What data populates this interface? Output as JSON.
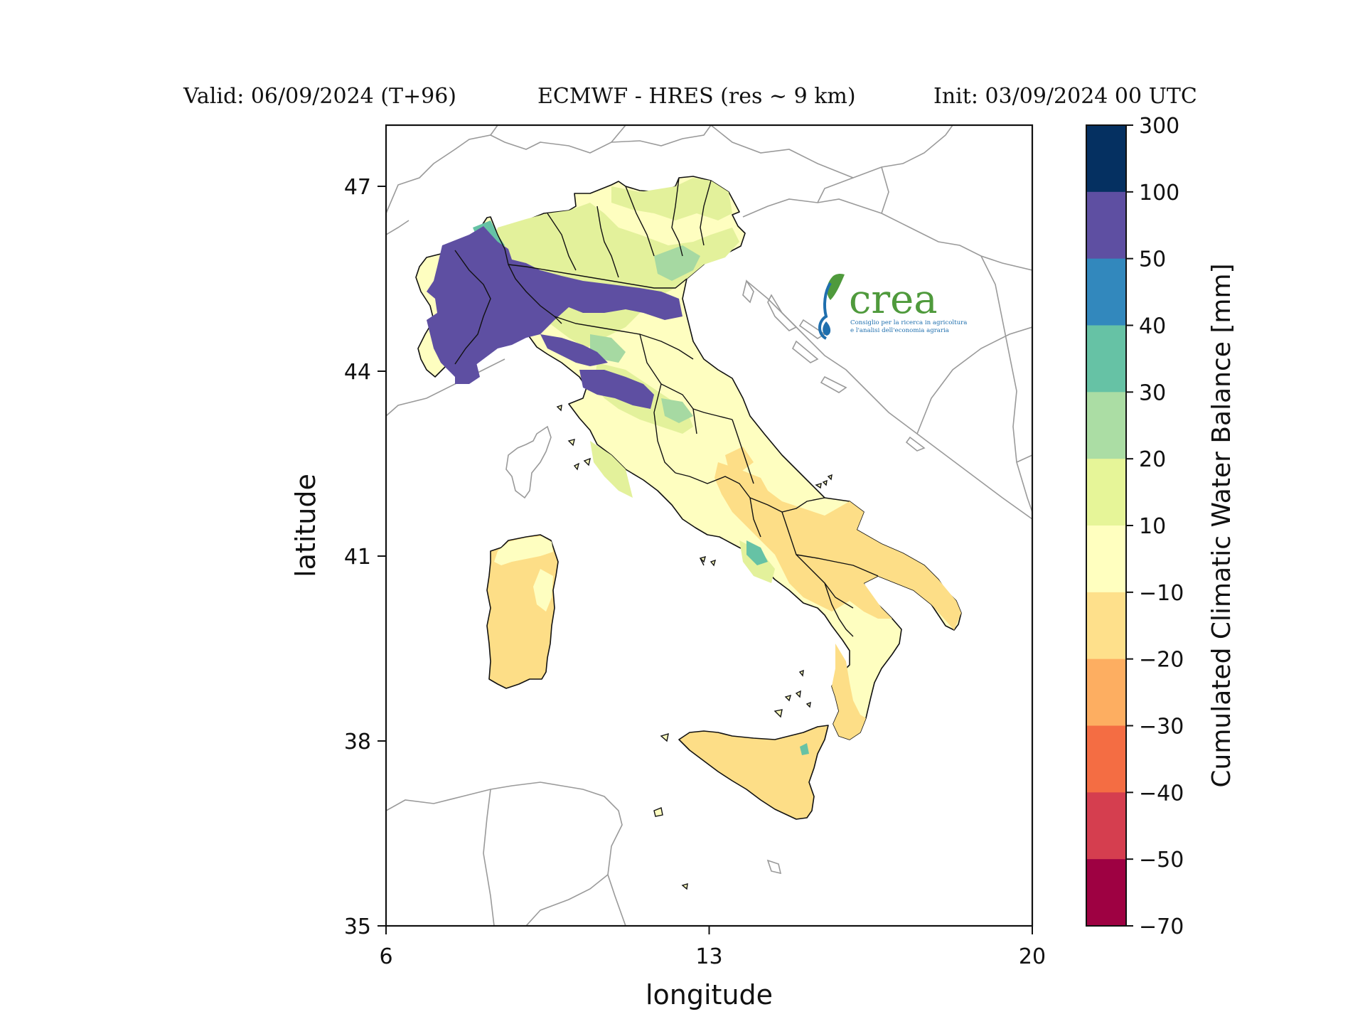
{
  "header": {
    "valid": "Valid: 06/09/2024 (T+96)",
    "model": "ECMWF - HRES (res ~ 9 km)",
    "init": "Init: 03/09/2024 00 UTC"
  },
  "map": {
    "xlabel": "longitude",
    "ylabel": "latitude",
    "xlim": [
      6,
      20
    ],
    "ylim": [
      35,
      48
    ],
    "xticks": [
      "6",
      "13",
      "20"
    ],
    "yticks": [
      "35",
      "38",
      "41",
      "44",
      "47"
    ],
    "land_colors": {
      "base": "#fefec0",
      "dry": "#fdde87",
      "wet_light": "#e3f19b",
      "wet_mid": "#a6d9a2",
      "wet_high": "#5e4fa2",
      "wet_teal": "#66c2a5",
      "country_border": "#9a9a9a",
      "region_border": "#111111"
    }
  },
  "colorbar": {
    "label": "Cumulated Climatic Water Balance [mm]",
    "bounds": [
      "300",
      "100",
      "50",
      "40",
      "30",
      "20",
      "10",
      "−10",
      "−20",
      "−30",
      "−40",
      "−50",
      "−70"
    ],
    "colors": [
      "#053061",
      "#5e4fa2",
      "#3288bd",
      "#66c2a5",
      "#abdda4",
      "#e6f598",
      "#ffffbf",
      "#fee08b",
      "#fdae61",
      "#f46d43",
      "#d53e4f",
      "#9e0142"
    ]
  },
  "logo": {
    "word": "crea",
    "tagline1": "Consiglio per la ricerca in agricoltura",
    "tagline2": "e l'analisi dell'economia agraria"
  }
}
